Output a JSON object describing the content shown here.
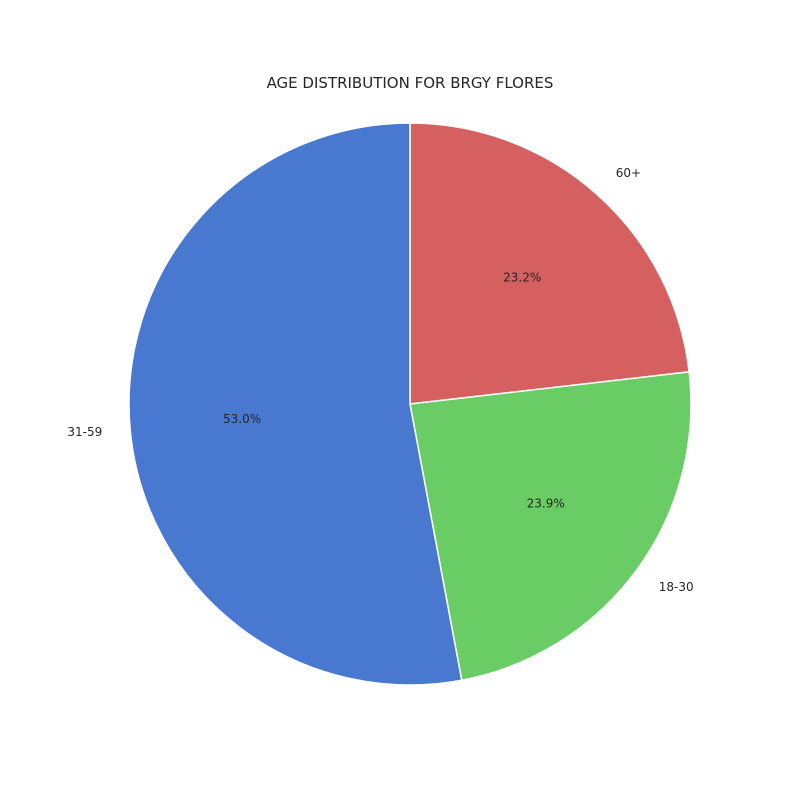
{
  "chart_data": {
    "type": "pie",
    "title": "AGE DISTRIBUTION FOR BRGY FLORES",
    "start_angle_deg": 90,
    "direction": "clockwise",
    "slices": [
      {
        "label": "60+",
        "value": 23.2,
        "pct_label": "23.2%",
        "color": "#d65f5f"
      },
      {
        "label": "18-30",
        "value": 23.9,
        "pct_label": "23.9%",
        "color": "#6acc64"
      },
      {
        "label": "31-59",
        "value": 53.0,
        "pct_label": "53.0%",
        "color": "#4878d0"
      }
    ],
    "edge_color": "#ffffff"
  }
}
